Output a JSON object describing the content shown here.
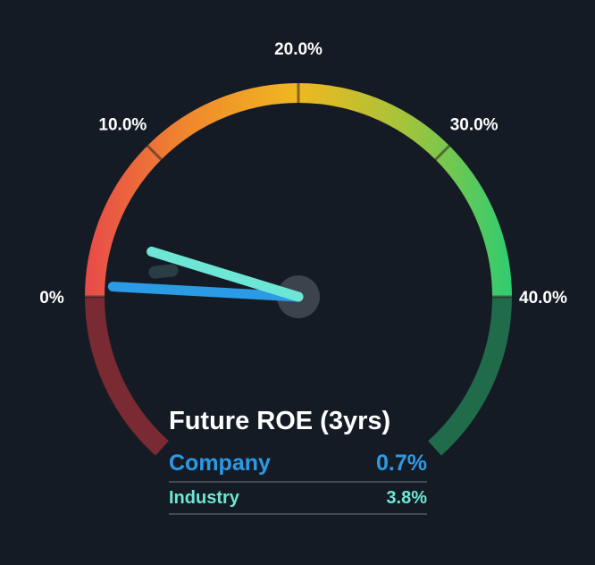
{
  "chart_data": {
    "type": "gauge",
    "title": "Future ROE (3yrs)",
    "scale": {
      "min": 0,
      "max": 40,
      "ticks": [
        0,
        10,
        20,
        30,
        40
      ],
      "tick_labels": [
        "0%",
        "10.0%",
        "20.0%",
        "30.0%",
        "40.0%"
      ]
    },
    "series": [
      {
        "name": "Company",
        "value": 0.7,
        "display": "0.7%",
        "color": "#2b9be6"
      },
      {
        "name": "Industry",
        "value": 3.8,
        "display": "3.8%",
        "color": "#6ee6d6"
      }
    ],
    "colors": {
      "background": "#151b24",
      "gradient_stops": [
        "#e84a4a",
        "#f08a2c",
        "#f0b820",
        "#a4c43a",
        "#2ecc71"
      ],
      "lower_left_arc": "#7a2a33",
      "lower_right_arc": "#1f6b4a",
      "hub": "#3d434c",
      "needle_shadow": "#2a3d45",
      "divider": "#434a53"
    }
  }
}
